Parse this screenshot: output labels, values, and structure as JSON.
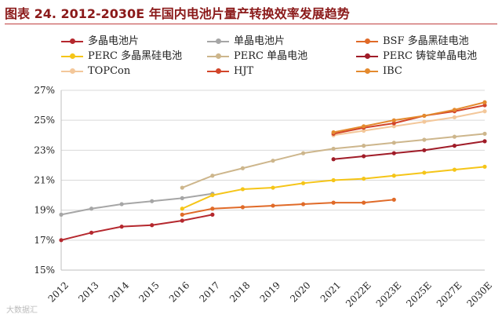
{
  "title": "图表 24. 2012-2030E  年国内电池片量产转换效率发展趋势",
  "watermark": "大数据汇",
  "chart_data": {
    "type": "line",
    "title": "图表 24. 2012-2030E  年国内电池片量产转换效率发展趋势",
    "xlabel": "",
    "ylabel": "",
    "categories": [
      "2012",
      "2013",
      "2014",
      "2015",
      "2016",
      "2017",
      "2018",
      "2019",
      "2020",
      "2021",
      "2022E",
      "2023E",
      "2025E",
      "2027E",
      "2030E"
    ],
    "yticks": [
      "15%",
      "17%",
      "19%",
      "21%",
      "23%",
      "25%",
      "27%"
    ],
    "ylim": [
      15,
      27
    ],
    "series": [
      {
        "name": "多晶电池片",
        "color": "#b5282e",
        "values": [
          17.0,
          17.5,
          17.9,
          18.0,
          18.3,
          18.7,
          null,
          null,
          null,
          null,
          null,
          null,
          null,
          null,
          null
        ]
      },
      {
        "name": "单晶电池片",
        "color": "#a6a6a6",
        "values": [
          18.7,
          19.1,
          19.4,
          19.6,
          19.8,
          20.1,
          null,
          null,
          null,
          null,
          null,
          null,
          null,
          null,
          null
        ]
      },
      {
        "name": "BSF 多晶黑硅电池",
        "color": "#e06a28",
        "values": [
          null,
          null,
          null,
          null,
          18.7,
          19.1,
          19.2,
          19.3,
          19.4,
          19.5,
          19.5,
          19.7,
          null,
          null,
          null
        ]
      },
      {
        "name": "PERC 多晶黑硅电池",
        "color": "#f5c518",
        "values": [
          null,
          null,
          null,
          null,
          19.1,
          20.0,
          20.4,
          20.5,
          20.8,
          21.0,
          21.1,
          21.3,
          21.5,
          21.7,
          21.9
        ]
      },
      {
        "name": "PERC 单晶电池",
        "color": "#cdb68c",
        "values": [
          null,
          null,
          null,
          null,
          20.5,
          21.3,
          21.8,
          22.3,
          22.8,
          23.1,
          23.3,
          23.5,
          23.7,
          23.9,
          24.1
        ]
      },
      {
        "name": "PERC 铸锭单晶电池",
        "color": "#a01c28",
        "values": [
          null,
          null,
          null,
          null,
          null,
          null,
          null,
          null,
          null,
          22.4,
          22.6,
          22.8,
          23.0,
          23.3,
          23.6
        ]
      },
      {
        "name": "TOPCon",
        "color": "#f3c79a",
        "values": [
          null,
          null,
          null,
          null,
          null,
          null,
          null,
          null,
          null,
          24.0,
          24.3,
          24.6,
          24.9,
          25.2,
          25.6
        ]
      },
      {
        "name": "HJT",
        "color": "#d2452a",
        "values": [
          null,
          null,
          null,
          null,
          null,
          null,
          null,
          null,
          null,
          24.1,
          24.5,
          24.8,
          25.3,
          25.6,
          26.0
        ]
      },
      {
        "name": "IBC",
        "color": "#e48a2e",
        "values": [
          null,
          null,
          null,
          null,
          null,
          null,
          null,
          null,
          null,
          24.2,
          24.6,
          25.0,
          25.3,
          25.7,
          26.2
        ]
      }
    ]
  }
}
